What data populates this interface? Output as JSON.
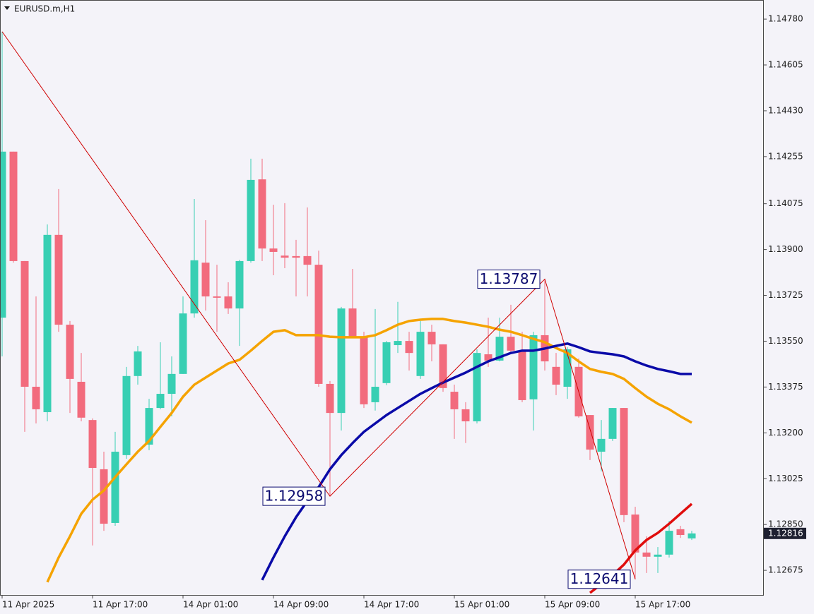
{
  "chart_data": {
    "type": "candlestick",
    "title": "EURUSD.m,H1",
    "categories": [
      "11 Apr 2025",
      null,
      null,
      null,
      null,
      null,
      null,
      null,
      "11 Apr 17:00",
      null,
      null,
      null,
      null,
      null,
      null,
      null,
      "14 Apr 01:00",
      null,
      null,
      null,
      null,
      null,
      null,
      null,
      "14 Apr 09:00",
      null,
      null,
      null,
      null,
      null,
      null,
      null,
      "14 Apr 17:00",
      null,
      null,
      null,
      null,
      null,
      null,
      null,
      "15 Apr 01:00",
      null,
      null,
      null,
      null,
      null,
      null,
      null,
      "15 Apr 09:00",
      null,
      null,
      null,
      null,
      null,
      null,
      null,
      "15 Apr 17:00",
      null,
      null,
      null,
      null,
      null
    ],
    "open": [
      1.1364,
      1.14274,
      1.13856,
      1.13376,
      1.13279,
      1.13956,
      1.13613,
      1.13395,
      1.13249,
      1.13061,
      1.12856,
      1.13115,
      1.13417,
      1.13155,
      1.13295,
      1.13349,
      1.13425,
      1.13656,
      1.1385,
      1.13721,
      1.13721,
      1.13675,
      1.13856,
      1.14168,
      1.13904,
      1.13877,
      1.13875,
      1.13875,
      1.13842,
      1.13387,
      1.13276,
      1.13675,
      1.13567,
      1.13317,
      1.1339,
      1.13535,
      1.13551,
      1.13417,
      1.13586,
      1.13538,
      1.13357,
      1.1329,
      1.13244,
      1.135,
      1.13476,
      1.13567,
      1.13514,
      1.13328,
      1.13573,
      1.13452,
      1.13376,
      1.13452,
      1.13268,
      1.13128,
      1.13177,
      1.13295,
      1.12888,
      1.12743,
      1.12727,
      1.12735,
      1.12832,
      1.12797
    ],
    "high": [
      1.14732,
      1.14274,
      1.13856,
      1.13721,
      1.13996,
      1.14131,
      1.13627,
      1.13505,
      1.13255,
      1.13128,
      1.13204,
      1.13452,
      1.13532,
      1.1333,
      1.13546,
      1.13492,
      1.13721,
      1.14093,
      1.14012,
      1.13842,
      1.13775,
      1.13861,
      1.14247,
      1.14247,
      1.14071,
      1.14077,
      1.13937,
      1.14061,
      1.13896,
      1.13398,
      1.13681,
      1.13826,
      1.13586,
      1.13673,
      1.13551,
      1.137,
      1.13586,
      1.13627,
      1.13613,
      1.13538,
      1.13384,
      1.13317,
      1.13519,
      1.1364,
      1.1364,
      1.13689,
      1.13586,
      1.13586,
      1.13787,
      1.13505,
      1.13527,
      1.13484,
      1.13268,
      1.13249,
      1.13295,
      1.13295,
      1.12918,
      1.12805,
      1.12764,
      1.12864,
      1.12845,
      1.12826
    ],
    "low": [
      1.13492,
      1.1385,
      1.13204,
      1.13236,
      1.13244,
      1.13586,
      1.13276,
      1.13244,
      1.1277,
      1.12826,
      1.12845,
      1.13101,
      1.13384,
      1.13134,
      1.1329,
      1.13263,
      1.13425,
      1.1364,
      1.13667,
      1.13586,
      1.13654,
      1.13532,
      1.1385,
      1.13856,
      1.13802,
      1.13829,
      1.13721,
      1.13721,
      1.13376,
      1.12958,
      1.13209,
      1.13565,
      1.13295,
      1.13285,
      1.13382,
      1.13505,
      1.13438,
      1.13406,
      1.13473,
      1.13357,
      1.13177,
      1.13161,
      1.13236,
      1.13452,
      1.13473,
      1.13505,
      1.13317,
      1.13209,
      1.13438,
      1.13344,
      1.1333,
      1.13258,
      1.13096,
      1.13053,
      1.13169,
      1.12859,
      1.12641,
      1.12665,
      1.12665,
      1.12724,
      1.12799,
      1.12791
    ],
    "close": [
      1.14274,
      1.13856,
      1.13376,
      1.1329,
      1.13956,
      1.13613,
      1.13406,
      1.13258,
      1.13066,
      1.12853,
      1.13128,
      1.13417,
      1.13511,
      1.13295,
      1.13349,
      1.13425,
      1.13656,
      1.13859,
      1.13721,
      1.13716,
      1.13675,
      1.13856,
      1.14166,
      1.13904,
      1.13891,
      1.13869,
      1.13869,
      1.13842,
      1.13387,
      1.13276,
      1.13675,
      1.13567,
      1.13309,
      1.13376,
      1.13546,
      1.13551,
      1.13505,
      1.13586,
      1.13538,
      1.13371,
      1.1329,
      1.13244,
      1.13505,
      1.13476,
      1.13567,
      1.13514,
      1.13325,
      1.13573,
      1.13473,
      1.13384,
      1.13519,
      1.13263,
      1.13136,
      1.13177,
      1.13295,
      1.12886,
      1.12743,
      1.12727,
      1.12735,
      1.12826,
      1.1281,
      1.12816
    ],
    "up_color": "#38cfb3",
    "down_color": "#f26b7d",
    "overlays": [
      {
        "color": "#f5a300",
        "values": [
          null,
          null,
          null,
          null,
          1.1263,
          1.12724,
          1.12805,
          1.12891,
          1.12945,
          1.1298,
          1.13031,
          1.1308,
          1.13128,
          1.13169,
          1.13223,
          1.13276,
          1.13338,
          1.13384,
          1.13411,
          1.13438,
          1.13465,
          1.13479,
          1.13514,
          1.13551,
          1.13586,
          1.13592,
          1.13573,
          1.13573,
          1.13573,
          1.13567,
          1.13565,
          1.13565,
          1.13565,
          1.13573,
          1.13592,
          1.13613,
          1.13627,
          1.13632,
          1.13635,
          1.13635,
          1.13627,
          1.13621,
          1.13613,
          1.13605,
          1.13594,
          1.13586,
          1.13573,
          1.13559,
          1.13546,
          1.13524,
          1.13505,
          1.13473,
          1.13444,
          1.13433,
          1.13425,
          1.13406,
          1.13371,
          1.13338,
          1.13311,
          1.1329,
          1.13263,
          1.13239
        ]
      },
      {
        "color": "#0a0aa8",
        "values": [
          null,
          null,
          null,
          null,
          null,
          null,
          null,
          null,
          null,
          null,
          null,
          null,
          null,
          null,
          null,
          null,
          null,
          null,
          null,
          null,
          null,
          null,
          null,
          1.12638,
          1.12724,
          1.12805,
          1.12878,
          1.1294,
          1.12993,
          1.13061,
          1.13115,
          1.13161,
          1.13204,
          1.13236,
          1.13268,
          1.13295,
          1.13322,
          1.13349,
          1.13371,
          1.13392,
          1.13411,
          1.1343,
          1.13452,
          1.13473,
          1.13489,
          1.13505,
          1.13514,
          1.13514,
          1.13522,
          1.13532,
          1.13541,
          1.13527,
          1.13511,
          1.13505,
          1.135,
          1.13492,
          1.13473,
          1.13457,
          1.13444,
          1.13435,
          1.13425,
          1.13425
        ]
      },
      {
        "color": "#e00d0d",
        "values": [
          null,
          null,
          null,
          null,
          null,
          null,
          null,
          null,
          null,
          null,
          null,
          null,
          null,
          null,
          null,
          null,
          null,
          null,
          null,
          null,
          null,
          null,
          null,
          null,
          null,
          null,
          null,
          null,
          null,
          null,
          null,
          null,
          null,
          null,
          null,
          null,
          null,
          null,
          null,
          null,
          null,
          null,
          null,
          null,
          null,
          null,
          null,
          null,
          null,
          null,
          null,
          null,
          1.12589,
          1.12622,
          1.12657,
          1.12697,
          1.12751,
          1.12791,
          1.12818,
          1.12853,
          1.12891,
          1.12929
        ]
      }
    ],
    "zigzag": {
      "color": "#d00000",
      "bars": [
        0,
        29,
        48,
        56
      ],
      "values": [
        1.14732,
        1.12958,
        1.13787,
        1.12641
      ]
    },
    "ylim": [
      1.12581,
      1.14853
    ],
    "yticks": [
      {
        "value": 1.1478,
        "label": "1.14780"
      },
      {
        "value": 1.14605,
        "label": "1.14605"
      },
      {
        "value": 1.1443,
        "label": "1.14430"
      },
      {
        "value": 1.14255,
        "label": "1.14255"
      },
      {
        "value": 1.14075,
        "label": "1.14075"
      },
      {
        "value": 1.139,
        "label": "1.13900"
      },
      {
        "value": 1.13725,
        "label": "1.13725"
      },
      {
        "value": 1.1355,
        "label": "1.13550"
      },
      {
        "value": 1.13375,
        "label": "1.13375"
      },
      {
        "value": 1.132,
        "label": "1.13200"
      },
      {
        "value": 1.13025,
        "label": "1.13025"
      },
      {
        "value": 1.1285,
        "label": "1.12850"
      },
      {
        "value": 1.12675,
        "label": "1.12675"
      }
    ],
    "grid": false
  }
}
